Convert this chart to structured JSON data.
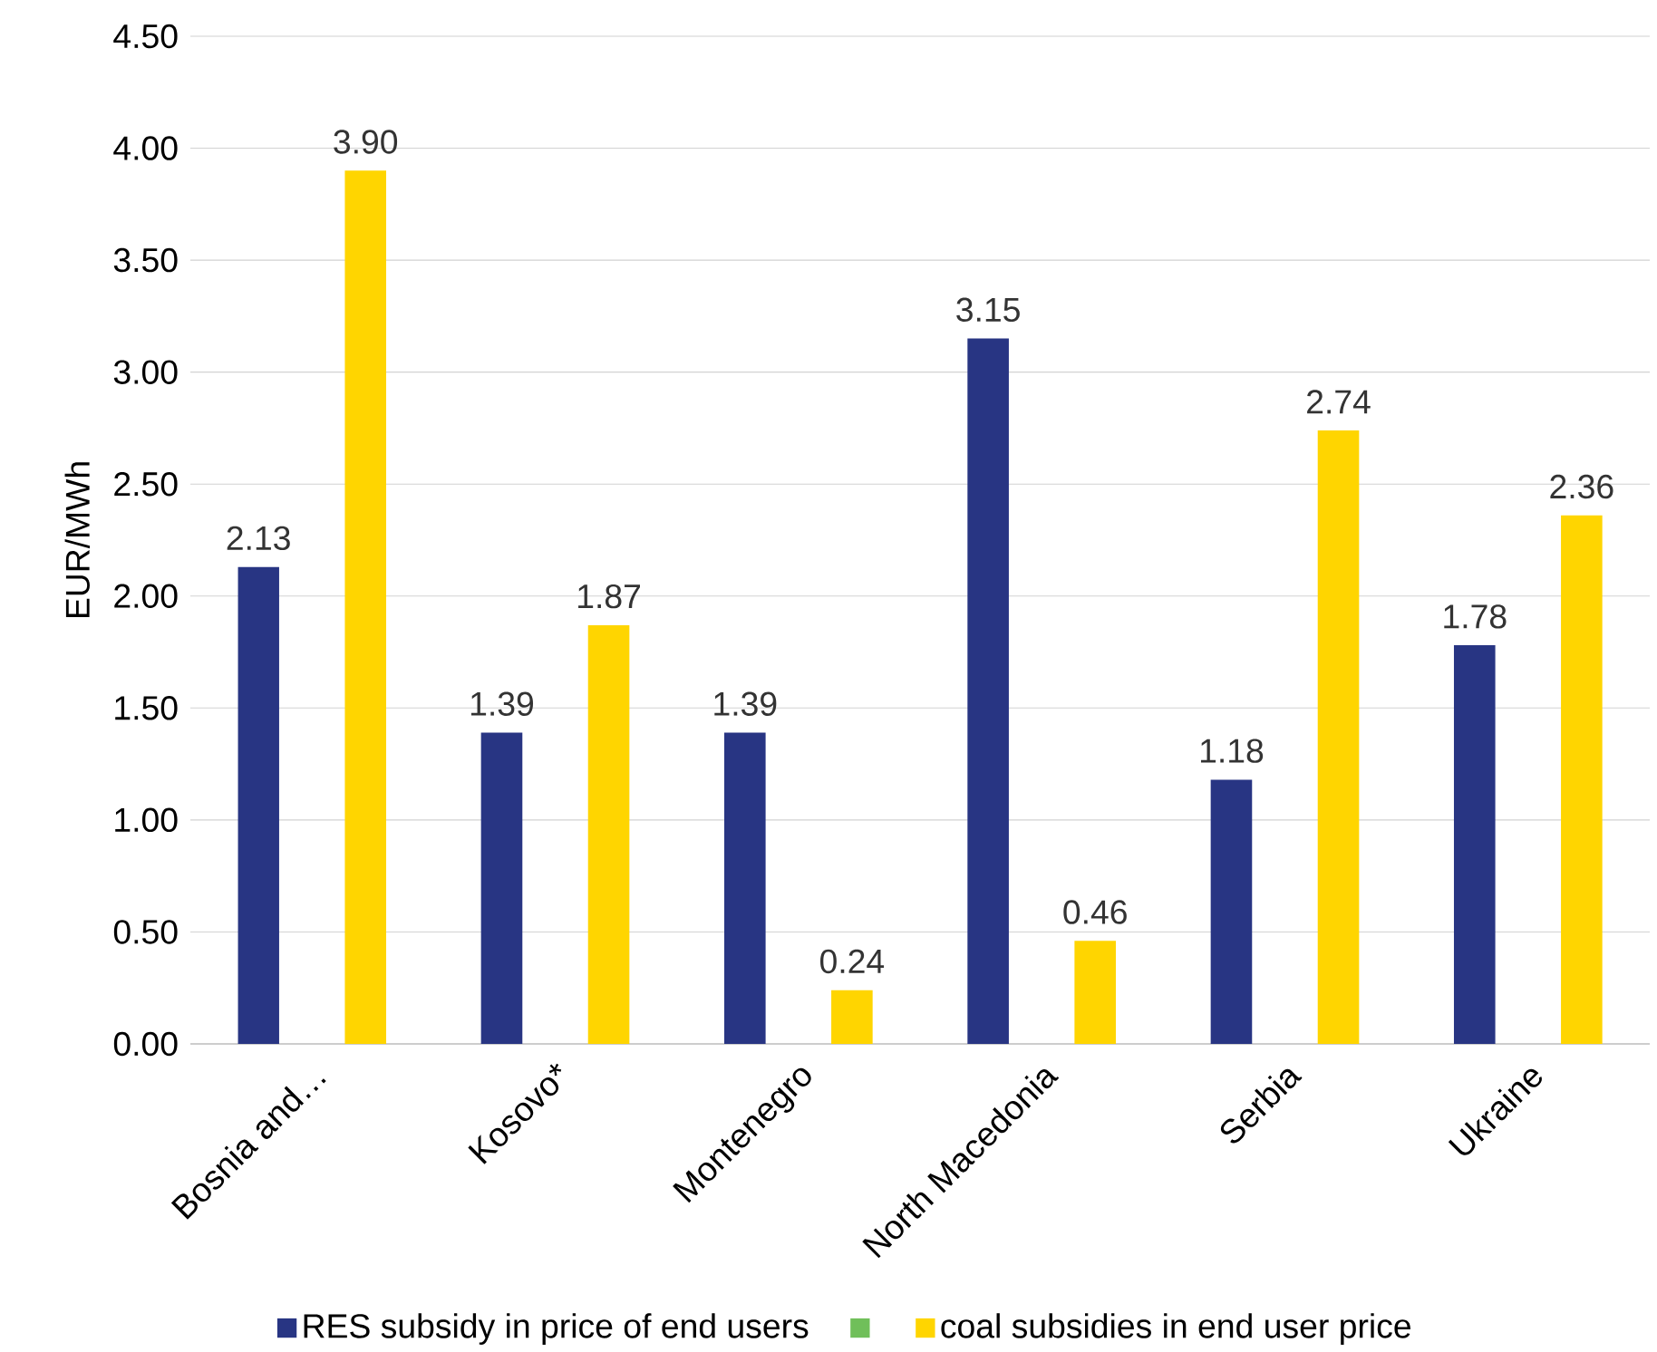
{
  "chart_data": {
    "type": "bar",
    "ylabel": "EUR/MWh",
    "categories": [
      "Bosnia and…",
      "Kosovo*",
      "Montenegro",
      "North Macedonia",
      "Serbia",
      "Ukraine"
    ],
    "series": [
      {
        "name": "RES subsidy in price of end users",
        "color": "#283583",
        "values": [
          2.13,
          1.39,
          1.39,
          3.15,
          1.18,
          1.78
        ],
        "value_labels": [
          "2.13",
          "1.39",
          "1.39",
          "3.15",
          "1.18",
          "1.78"
        ]
      },
      {
        "color": "#70bf5a",
        "values": [
          null,
          null,
          null,
          null,
          null,
          null
        ]
      },
      {
        "name": "coal subsidies in end user price",
        "color": "#ffd500",
        "values": [
          3.9,
          1.87,
          0.24,
          0.46,
          2.74,
          2.36
        ],
        "value_labels": [
          "3.90",
          "1.87",
          "0.24",
          "0.46",
          "2.74",
          "2.36"
        ]
      }
    ],
    "ylim": [
      0,
      4.5
    ],
    "yticks": [
      {
        "value": 0,
        "label": "0.00"
      },
      {
        "value": 0.5,
        "label": "0.50"
      },
      {
        "value": 1,
        "label": "1.00"
      },
      {
        "value": 1.5,
        "label": "1.50"
      },
      {
        "value": 2,
        "label": "2.00"
      },
      {
        "value": 2.5,
        "label": "2.50"
      },
      {
        "value": 3,
        "label": "3.00"
      },
      {
        "value": 3.5,
        "label": "3.50"
      },
      {
        "value": 4,
        "label": "4.00"
      },
      {
        "value": 4.5,
        "label": "4.50"
      }
    ],
    "grid": "y",
    "legend": "bottom"
  }
}
